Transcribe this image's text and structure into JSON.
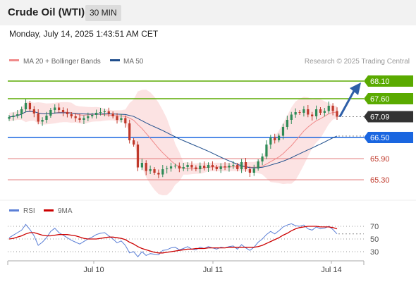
{
  "header": {
    "title": "Crude Oil (WTI)",
    "interval": "30 MIN"
  },
  "datetime": "Monday, July 14, 2025 1:43:51 AM CET",
  "legend": {
    "bollinger": {
      "label": "MA 20 + Bollinger Bands",
      "color": "#f08a8a"
    },
    "ma50": {
      "label": "MA 50",
      "color": "#1f4e8c"
    },
    "source": "Research © 2025 Trading Central"
  },
  "rsi_legend": {
    "rsi": {
      "label": "RSI",
      "color": "#5b7fd6"
    },
    "ma9": {
      "label": "9MA",
      "color": "#cc0000"
    }
  },
  "x_labels": [
    "Jul 10",
    "Jul 11",
    "Jul 14"
  ],
  "rsi_levels": [
    "70",
    "50",
    "30"
  ],
  "chart_data": [
    {
      "type": "candlestick",
      "title": "Crude Oil (WTI)",
      "interval": "30 MIN",
      "ylim": [
        65.0,
        68.4
      ],
      "x_ticks": [
        "Jul 10",
        "Jul 11",
        "Jul 14"
      ],
      "last_price": 67.09,
      "levels": [
        {
          "value": 68.1,
          "label": "68.10",
          "kind": "resistance",
          "color": "#5aaa00"
        },
        {
          "value": 67.6,
          "label": "67.60",
          "kind": "resistance",
          "color": "#5aaa00"
        },
        {
          "value": 67.09,
          "label": "67.09",
          "kind": "last",
          "color": "#333333"
        },
        {
          "value": 66.5,
          "label": "66.50",
          "kind": "pivot",
          "color": "#1a66e0"
        },
        {
          "value": 65.9,
          "label": "65.90",
          "kind": "support",
          "color": "#e37c7c"
        },
        {
          "value": 65.3,
          "label": "65.30",
          "kind": "support",
          "color": "#e37c7c"
        }
      ],
      "close": [
        67.08,
        67.12,
        67.16,
        67.3,
        67.48,
        67.3,
        67.18,
        66.95,
        67.0,
        67.12,
        67.28,
        67.35,
        67.28,
        67.22,
        67.16,
        67.1,
        67.05,
        67.0,
        67.05,
        67.1,
        67.14,
        67.2,
        67.22,
        67.24,
        67.18,
        67.1,
        67.0,
        67.05,
        66.9,
        66.42,
        66.3,
        65.65,
        65.78,
        65.55,
        65.6,
        65.5,
        65.45,
        65.6,
        65.62,
        65.68,
        65.7,
        65.62,
        65.66,
        65.72,
        65.65,
        65.6,
        65.7,
        65.64,
        65.72,
        65.66,
        65.6,
        65.68,
        65.65,
        65.7,
        65.72,
        65.6,
        65.8,
        65.6,
        65.5,
        65.62,
        65.82,
        65.96,
        66.3,
        66.5,
        66.42,
        66.55,
        66.8,
        67.0,
        67.15,
        67.22,
        67.2,
        67.3,
        67.15,
        67.1,
        67.3,
        67.2,
        67.25,
        67.4,
        67.25,
        67.09
      ],
      "annotation": "Projected path up toward 68.10"
    },
    {
      "type": "line",
      "title": "RSI",
      "series": [
        {
          "name": "RSI",
          "values": [
            52,
            56,
            60,
            64,
            73,
            65,
            55,
            40,
            45,
            52,
            62,
            67,
            60,
            56,
            52,
            48,
            45,
            42,
            46,
            50,
            53,
            57,
            59,
            60,
            55,
            50,
            44,
            47,
            40,
            28,
            30,
            22,
            30,
            24,
            27,
            26,
            25,
            32,
            33,
            36,
            37,
            33,
            35,
            38,
            34,
            33,
            37,
            35,
            38,
            36,
            34,
            37,
            36,
            38,
            39,
            34,
            41,
            36,
            32,
            37,
            45,
            50,
            57,
            62,
            58,
            63,
            69,
            72,
            74,
            71,
            70,
            72,
            66,
            64,
            69,
            66,
            67,
            70,
            65,
            58
          ]
        },
        {
          "name": "9MA",
          "values": [
            50,
            51,
            53,
            55,
            58,
            60,
            60,
            58,
            56,
            55,
            55,
            56,
            57,
            57,
            57,
            56,
            55,
            53,
            51,
            50,
            50,
            50,
            51,
            52,
            53,
            53,
            52,
            51,
            49,
            45,
            42,
            38,
            35,
            33,
            31,
            29,
            28,
            28,
            29,
            30,
            31,
            32,
            33,
            34,
            34,
            35,
            35,
            35,
            36,
            36,
            36,
            36,
            36,
            37,
            37,
            37,
            37,
            37,
            37,
            37,
            38,
            40,
            43,
            46,
            49,
            52,
            56,
            59,
            63,
            66,
            68,
            69,
            70,
            70,
            70,
            69,
            69,
            69,
            68,
            66
          ]
        }
      ],
      "ylim": [
        20,
        80
      ],
      "levels": [
        70,
        50,
        30
      ]
    }
  ]
}
